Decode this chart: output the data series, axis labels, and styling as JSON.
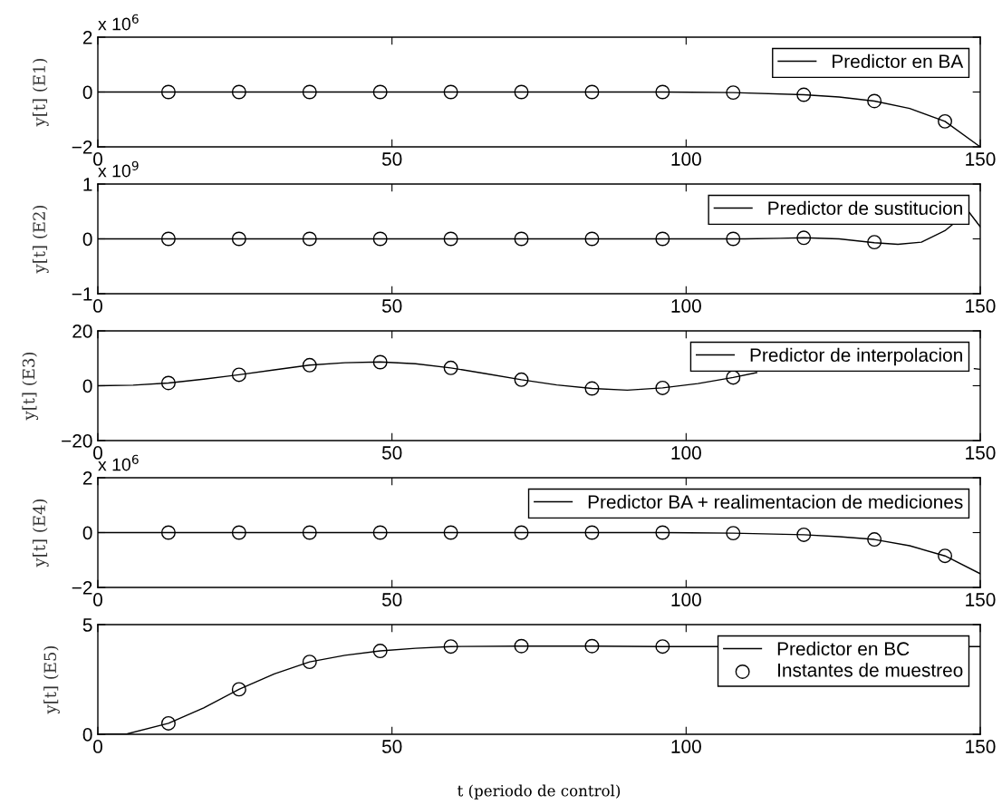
{
  "chart_data": [
    {
      "type": "line",
      "ylabel": "y[t] (E1)",
      "xlim": [
        0,
        150
      ],
      "xticks": [
        0,
        50,
        100,
        150
      ],
      "ylim": [
        -2,
        2
      ],
      "yticks": [
        {
          "value": -2,
          "label": "−2"
        },
        0,
        2
      ],
      "annotations": [
        "x 10$^{6}$"
      ],
      "legend": "top right",
      "grid": false,
      "series": [
        {
          "name": "Predictor en BA",
          "type": "line",
          "color": "#000000",
          "line_style": "solid",
          "x": [
            0,
            60,
            96,
            108,
            120,
            126,
            132,
            138,
            144,
            150
          ],
          "values": [
            0,
            0,
            0,
            -0.02,
            -0.1,
            -0.18,
            -0.33,
            -0.6,
            -1.07,
            -2
          ]
        },
        {
          "type": "scatter",
          "marker": "circle",
          "color": "#000000",
          "x": [
            12,
            24,
            36,
            48,
            60,
            72,
            84,
            96,
            108,
            120,
            132,
            144
          ],
          "values": [
            0,
            0,
            0,
            0,
            0,
            0,
            0,
            0,
            -0.02,
            -0.1,
            -0.33,
            -1.07
          ]
        }
      ]
    },
    {
      "type": "line",
      "ylabel": "y[t] (E2)",
      "xlim": [
        0,
        150
      ],
      "xticks": [
        0,
        50,
        100,
        150
      ],
      "ylim": [
        -1,
        1
      ],
      "yticks": [
        {
          "value": -1,
          "label": "−1"
        },
        0,
        1
      ],
      "annotations": [
        "x 10$^{9}$"
      ],
      "legend": "top right",
      "grid": false,
      "series": [
        {
          "name": "Predictor de sustitucion",
          "type": "line",
          "color": "#000000",
          "line_style": "solid",
          "x": [
            0,
            100,
            110,
            116,
            120,
            126,
            132,
            136,
            140,
            144,
            148,
            150
          ],
          "values": [
            0,
            0,
            0,
            0.01,
            0.02,
            0.0,
            -0.07,
            -0.1,
            -0.06,
            0.15,
            0.5,
            0.22
          ]
        },
        {
          "type": "scatter",
          "marker": "circle",
          "color": "#000000",
          "x": [
            12,
            24,
            36,
            48,
            60,
            72,
            84,
            96,
            108,
            120,
            132
          ],
          "values": [
            0,
            0,
            0,
            0,
            0,
            0,
            0,
            0,
            0,
            0.02,
            -0.06
          ]
        }
      ]
    },
    {
      "type": "line",
      "ylabel": "y[t] (E3)",
      "xlim": [
        0,
        150
      ],
      "xticks": [
        0,
        50,
        100,
        150
      ],
      "ylim": [
        -20,
        20
      ],
      "yticks": [
        {
          "value": -20,
          "label": "−20"
        },
        0,
        20
      ],
      "legend": "top right",
      "grid": false,
      "series": [
        {
          "name": "Predictor de interpolacion",
          "type": "line",
          "color": "#000000",
          "line_style": "solid",
          "x": [
            0,
            6,
            12,
            18,
            24,
            30,
            36,
            42,
            48,
            54,
            60,
            66,
            72,
            78,
            84,
            90,
            96,
            102,
            108,
            112,
            130,
            149,
            150
          ],
          "values": [
            0,
            0.2,
            1,
            2.4,
            4,
            5.8,
            7.5,
            8.4,
            8.7,
            8,
            6.5,
            4.4,
            2.2,
            0.3,
            -1,
            -1.6,
            -0.8,
            0.8,
            3,
            4.8,
            null,
            6.2,
            6
          ]
        },
        {
          "type": "scatter",
          "marker": "circle",
          "color": "#000000",
          "x": [
            12,
            24,
            36,
            48,
            60,
            72,
            84,
            96,
            108
          ],
          "values": [
            1,
            4,
            7.5,
            8.6,
            6.5,
            2.2,
            -1,
            -0.8,
            3
          ]
        }
      ]
    },
    {
      "type": "line",
      "ylabel": "y[t] (E4)",
      "xlim": [
        0,
        150
      ],
      "xticks": [
        0,
        50,
        100,
        150
      ],
      "ylim": [
        -2,
        2
      ],
      "yticks": [
        {
          "value": -2,
          "label": "−2"
        },
        0,
        2
      ],
      "annotations": [
        "x 10$^{6}$"
      ],
      "legend": "top right",
      "grid": false,
      "series": [
        {
          "name": "Predictor BA + realimentacion de mediciones",
          "type": "line",
          "color": "#000000",
          "line_style": "solid",
          "x": [
            0,
            60,
            96,
            108,
            120,
            126,
            132,
            138,
            144,
            150
          ],
          "values": [
            0,
            0,
            0,
            -0.02,
            -0.08,
            -0.15,
            -0.25,
            -0.48,
            -0.85,
            -1.5
          ]
        },
        {
          "type": "scatter",
          "marker": "circle",
          "color": "#000000",
          "x": [
            12,
            24,
            36,
            48,
            60,
            72,
            84,
            96,
            108,
            120,
            132,
            144
          ],
          "values": [
            0,
            0,
            0,
            0,
            0,
            0,
            0,
            0,
            -0.02,
            -0.08,
            -0.25,
            -0.85
          ]
        }
      ]
    },
    {
      "type": "line",
      "ylabel": "y[t] (E5)",
      "xlabel": "t (periodo de control)",
      "xlim": [
        0,
        150
      ],
      "xticks": [
        0,
        50,
        100,
        150
      ],
      "ylim": [
        0,
        5
      ],
      "yticks": [
        0,
        5
      ],
      "legend": "top right",
      "grid": false,
      "series": [
        {
          "name": "Predictor en BC",
          "type": "line",
          "color": "#000000",
          "line_style": "solid",
          "x": [
            0,
            5,
            12,
            18,
            24,
            30,
            36,
            42,
            48,
            54,
            60,
            72,
            84,
            96,
            150
          ],
          "values": [
            0,
            0.02,
            0.5,
            1.2,
            2.05,
            2.75,
            3.3,
            3.6,
            3.8,
            3.92,
            4.0,
            4.02,
            4.02,
            4.0,
            4.0
          ]
        },
        {
          "name": "Instantes de muestreo",
          "type": "scatter",
          "marker": "circle",
          "color": "#000000",
          "x": [
            12,
            24,
            36,
            48,
            60,
            72,
            84,
            96
          ],
          "values": [
            0.5,
            2.05,
            3.3,
            3.8,
            4.0,
            4.02,
            4.02,
            4.0
          ]
        }
      ]
    }
  ]
}
